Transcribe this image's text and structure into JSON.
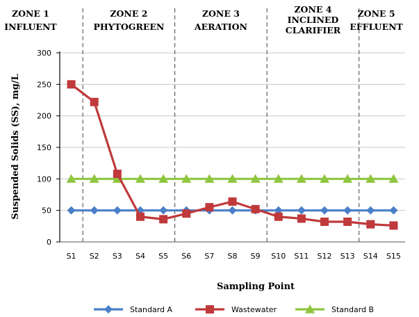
{
  "chart_data": {
    "type": "line",
    "categories": [
      "S1",
      "S2",
      "S3",
      "S4",
      "S5",
      "S6",
      "S7",
      "S8",
      "S9",
      "S10",
      "S11",
      "S12",
      "S13",
      "S14",
      "S15"
    ],
    "series": [
      {
        "name": "Standard A",
        "color": "#4a7fc8",
        "marker": "diamond",
        "values": [
          50,
          50,
          50,
          50,
          50,
          50,
          50,
          50,
          50,
          50,
          50,
          50,
          50,
          50,
          50
        ]
      },
      {
        "name": "Wastewater",
        "color": "#c0393b",
        "marker": "square",
        "values": [
          250,
          222,
          108,
          40,
          36,
          45,
          55,
          64,
          52,
          40,
          37,
          32,
          32,
          28,
          26
        ]
      },
      {
        "name": "Standard B",
        "color": "#8ec63f",
        "marker": "triangle",
        "values": [
          100,
          100,
          100,
          100,
          100,
          100,
          100,
          100,
          100,
          100,
          100,
          100,
          100,
          100,
          100
        ]
      }
    ],
    "xlabel": "Sampling Point",
    "ylabel": "Suspended Solids (SS), mg/L",
    "ylim": [
      0,
      300
    ],
    "yticks": [
      0,
      50,
      100,
      150,
      200,
      250,
      300
    ],
    "grid": true,
    "legend_position": "bottom",
    "zones": [
      {
        "lines": [
          "ZONE 1",
          "INFLUENT"
        ],
        "start": 1,
        "end": 1.5
      },
      {
        "lines": [
          "ZONE 2",
          "PHYTOGREEN"
        ],
        "start": 1.5,
        "end": 5.5
      },
      {
        "lines": [
          "ZONE 3",
          "AERATION"
        ],
        "start": 5.5,
        "end": 9.5
      },
      {
        "lines": [
          "ZONE 4",
          "INCLINED",
          "CLARIFIER"
        ],
        "start": 9.5,
        "end": 13.5
      },
      {
        "lines": [
          "ZONE 5",
          "EFFLUENT"
        ],
        "start": 13.5,
        "end": 15
      }
    ]
  }
}
